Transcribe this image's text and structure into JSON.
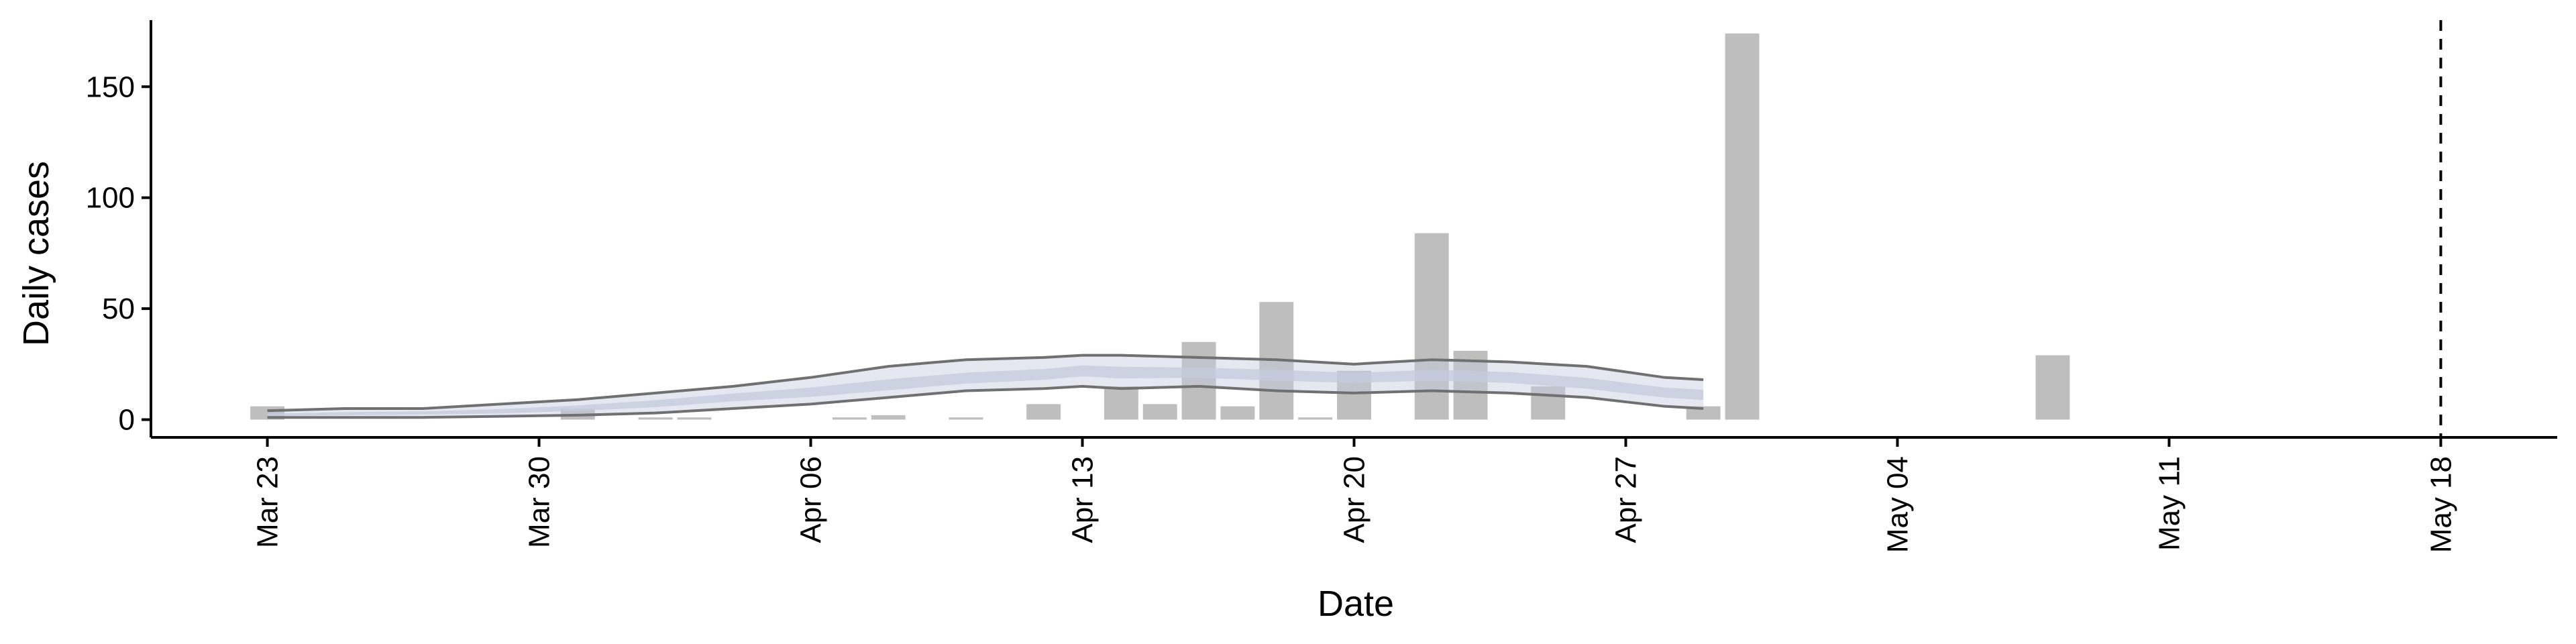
{
  "chart_data": {
    "type": "bar",
    "title": "",
    "xlabel": "Date",
    "ylabel": "Daily cases",
    "x_range": [
      "2020-03-20",
      "2020-05-21"
    ],
    "ylim": [
      -8,
      180
    ],
    "x_ticks": [
      {
        "date": "2020-03-23",
        "label": "Mar 23"
      },
      {
        "date": "2020-03-30",
        "label": "Mar 30"
      },
      {
        "date": "2020-04-06",
        "label": "Apr 06"
      },
      {
        "date": "2020-04-13",
        "label": "Apr 13"
      },
      {
        "date": "2020-04-20",
        "label": "Apr 20"
      },
      {
        "date": "2020-04-27",
        "label": "Apr 27"
      },
      {
        "date": "2020-05-04",
        "label": "May 04"
      },
      {
        "date": "2020-05-11",
        "label": "May 11"
      },
      {
        "date": "2020-05-18",
        "label": "May 18"
      }
    ],
    "y_ticks": [
      0,
      50,
      100,
      150
    ],
    "grid": false,
    "bar_color": "#bebebe",
    "bars": [
      {
        "date": "2020-03-23",
        "value": 6
      },
      {
        "date": "2020-03-31",
        "value": 5
      },
      {
        "date": "2020-04-02",
        "value": 1
      },
      {
        "date": "2020-04-03",
        "value": 1
      },
      {
        "date": "2020-04-07",
        "value": 1
      },
      {
        "date": "2020-04-08",
        "value": 2
      },
      {
        "date": "2020-04-10",
        "value": 1
      },
      {
        "date": "2020-04-12",
        "value": 7
      },
      {
        "date": "2020-04-14",
        "value": 15
      },
      {
        "date": "2020-04-15",
        "value": 7
      },
      {
        "date": "2020-04-16",
        "value": 35
      },
      {
        "date": "2020-04-17",
        "value": 6
      },
      {
        "date": "2020-04-18",
        "value": 53
      },
      {
        "date": "2020-04-19",
        "value": 1
      },
      {
        "date": "2020-04-20",
        "value": 22
      },
      {
        "date": "2020-04-22",
        "value": 84
      },
      {
        "date": "2020-04-23",
        "value": 31
      },
      {
        "date": "2020-04-25",
        "value": 15
      },
      {
        "date": "2020-04-29",
        "value": 6
      },
      {
        "date": "2020-04-30",
        "value": 174
      },
      {
        "date": "2020-05-08",
        "value": 29
      }
    ],
    "estimate": {
      "fill_color": "#c5ccdd",
      "line_color": "#707070",
      "points": [
        {
          "date": "2020-03-23",
          "lower": 1,
          "median": 2,
          "upper": 4
        },
        {
          "date": "2020-03-25",
          "lower": 1,
          "median": 2.5,
          "upper": 5
        },
        {
          "date": "2020-03-27",
          "lower": 1,
          "median": 3,
          "upper": 5
        },
        {
          "date": "2020-03-29",
          "lower": 1.5,
          "median": 3.5,
          "upper": 7
        },
        {
          "date": "2020-03-31",
          "lower": 2,
          "median": 5,
          "upper": 9
        },
        {
          "date": "2020-04-02",
          "lower": 3,
          "median": 7,
          "upper": 12
        },
        {
          "date": "2020-04-04",
          "lower": 5,
          "median": 10,
          "upper": 15
        },
        {
          "date": "2020-04-06",
          "lower": 7,
          "median": 12,
          "upper": 19
        },
        {
          "date": "2020-04-08",
          "lower": 10,
          "median": 15,
          "upper": 24
        },
        {
          "date": "2020-04-10",
          "lower": 13,
          "median": 18,
          "upper": 27
        },
        {
          "date": "2020-04-12",
          "lower": 14,
          "median": 20,
          "upper": 28
        },
        {
          "date": "2020-04-13",
          "lower": 15,
          "median": 22,
          "upper": 29
        },
        {
          "date": "2020-04-14",
          "lower": 14,
          "median": 21,
          "upper": 29
        },
        {
          "date": "2020-04-16",
          "lower": 15,
          "median": 21,
          "upper": 28
        },
        {
          "date": "2020-04-18",
          "lower": 13,
          "median": 20,
          "upper": 27
        },
        {
          "date": "2020-04-20",
          "lower": 12,
          "median": 19,
          "upper": 25
        },
        {
          "date": "2020-04-22",
          "lower": 13,
          "median": 20,
          "upper": 27
        },
        {
          "date": "2020-04-24",
          "lower": 12,
          "median": 19,
          "upper": 26
        },
        {
          "date": "2020-04-26",
          "lower": 10,
          "median": 16,
          "upper": 24
        },
        {
          "date": "2020-04-28",
          "lower": 6,
          "median": 12,
          "upper": 19
        },
        {
          "date": "2020-04-29",
          "lower": 5,
          "median": 11,
          "upper": 18
        }
      ]
    },
    "reference_line": {
      "date": "2020-05-18",
      "style": "dashed"
    }
  }
}
